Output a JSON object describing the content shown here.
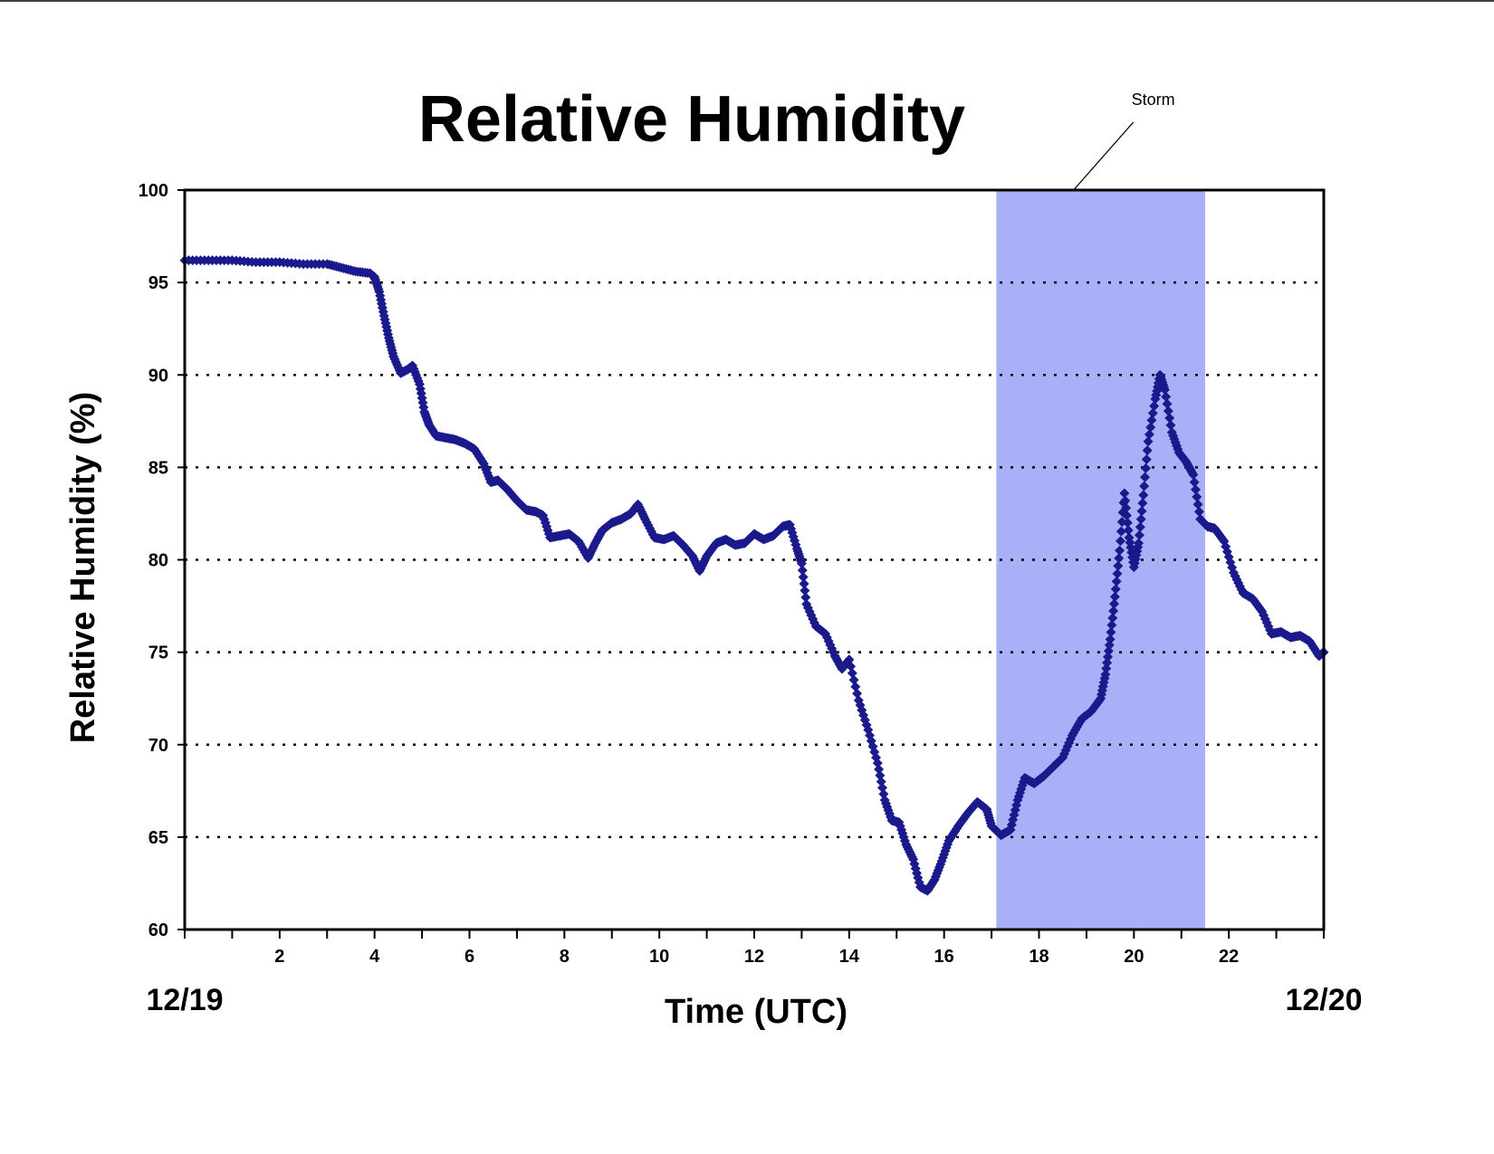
{
  "chart_data": {
    "type": "scatter",
    "title": "Relative Humidity",
    "xlabel": "Time (UTC)",
    "ylabel": "Relative Humidity (%)",
    "xlim": [
      0,
      24
    ],
    "ylim": [
      60,
      100
    ],
    "x_ticks": [
      {
        "value": 2,
        "label": "2"
      },
      {
        "value": 4,
        "label": "4"
      },
      {
        "value": 6,
        "label": "6"
      },
      {
        "value": 8,
        "label": "8"
      },
      {
        "value": 10,
        "label": "10"
      },
      {
        "value": 12,
        "label": "12"
      },
      {
        "value": 14,
        "label": "14"
      },
      {
        "value": 16,
        "label": "16"
      },
      {
        "value": 18,
        "label": "18"
      },
      {
        "value": 20,
        "label": "20"
      },
      {
        "value": 22,
        "label": "22"
      }
    ],
    "y_ticks": [
      {
        "value": 60,
        "label": "60"
      },
      {
        "value": 65,
        "label": "65"
      },
      {
        "value": 70,
        "label": "70"
      },
      {
        "value": 75,
        "label": "75"
      },
      {
        "value": 80,
        "label": "80"
      },
      {
        "value": 85,
        "label": "85"
      },
      {
        "value": 90,
        "label": "90"
      },
      {
        "value": 95,
        "label": "95"
      },
      {
        "value": 100,
        "label": "100"
      }
    ],
    "date_labels": [
      {
        "value": 0,
        "label": "12/19"
      },
      {
        "value": 24,
        "label": "12/20"
      }
    ],
    "grid": "horizontal dotted",
    "marker_color": "#1a1a8c",
    "storm_band": {
      "x_start": 17.1,
      "x_end": 21.5,
      "color": "#aab0f8",
      "label": "Storm"
    },
    "series": [
      {
        "x": [
          0,
          0.5,
          1,
          1.5,
          2,
          2.5,
          3,
          3.3,
          3.6,
          3.9,
          4.0,
          4.1,
          4.2,
          4.3,
          4.4,
          4.55,
          4.7,
          4.8,
          4.95,
          5.05,
          5.15,
          5.3,
          5.5,
          5.7,
          5.9,
          6.1,
          6.3,
          6.45,
          6.6,
          6.8,
          7.0,
          7.2,
          7.4,
          7.55,
          7.7,
          7.9,
          8.1,
          8.3,
          8.5,
          8.65,
          8.8,
          9.0,
          9.2,
          9.4,
          9.55,
          9.7,
          9.9,
          10.1,
          10.3,
          10.5,
          10.7,
          10.85,
          11.0,
          11.2,
          11.4,
          11.6,
          11.8,
          12.0,
          12.2,
          12.4,
          12.6,
          12.75,
          12.9,
          13.0,
          13.1,
          13.3,
          13.5,
          13.7,
          13.85,
          14.0,
          14.2,
          14.4,
          14.6,
          14.75,
          14.9,
          15.05,
          15.2,
          15.35,
          15.5,
          15.65,
          15.8,
          15.95,
          16.1,
          16.3,
          16.5,
          16.7,
          16.9,
          17.0,
          17.2,
          17.4,
          17.55,
          17.7,
          17.9,
          18.1,
          18.3,
          18.5,
          18.7,
          18.9,
          19.1,
          19.3,
          19.4,
          19.5,
          19.6,
          19.7,
          19.8,
          19.9,
          20.0,
          20.1,
          20.2,
          20.3,
          20.45,
          20.55,
          20.65,
          20.8,
          20.95,
          21.1,
          21.25,
          21.4,
          21.55,
          21.7,
          21.9,
          22.1,
          22.3,
          22.5,
          22.7,
          22.9,
          23.1,
          23.3,
          23.5,
          23.7,
          23.9,
          24.0
        ],
        "y": [
          96.2,
          96.2,
          96.2,
          96.1,
          96.1,
          96.0,
          96.0,
          95.8,
          95.6,
          95.5,
          95.3,
          94.5,
          93.2,
          92.0,
          91.0,
          90.1,
          90.3,
          90.5,
          89.5,
          88.0,
          87.3,
          86.7,
          86.6,
          86.5,
          86.3,
          86.0,
          85.2,
          84.2,
          84.3,
          83.8,
          83.2,
          82.7,
          82.6,
          82.4,
          81.2,
          81.3,
          81.4,
          81.0,
          80.1,
          80.9,
          81.6,
          82.0,
          82.2,
          82.5,
          83.0,
          82.2,
          81.2,
          81.1,
          81.3,
          80.8,
          80.2,
          79.4,
          80.2,
          80.9,
          81.1,
          80.8,
          80.9,
          81.4,
          81.1,
          81.3,
          81.8,
          81.9,
          80.6,
          79.8,
          77.6,
          76.4,
          76.0,
          74.8,
          74.1,
          74.6,
          72.4,
          70.8,
          69.0,
          67.0,
          65.9,
          65.8,
          64.6,
          63.8,
          62.3,
          62.1,
          62.7,
          63.7,
          64.8,
          65.6,
          66.3,
          66.9,
          66.5,
          65.6,
          65.1,
          65.4,
          67.0,
          68.2,
          67.9,
          68.3,
          68.8,
          69.3,
          70.5,
          71.4,
          71.8,
          72.5,
          73.8,
          75.7,
          78.0,
          80.5,
          83.6,
          81.2,
          79.6,
          80.9,
          83.5,
          86.4,
          88.7,
          90.0,
          89.2,
          86.9,
          85.8,
          85.3,
          84.6,
          82.2,
          81.8,
          81.7,
          81.0,
          79.3,
          78.2,
          77.9,
          77.2,
          76.0,
          76.1,
          75.8,
          75.9,
          75.6,
          74.8,
          75.0
        ]
      }
    ]
  }
}
